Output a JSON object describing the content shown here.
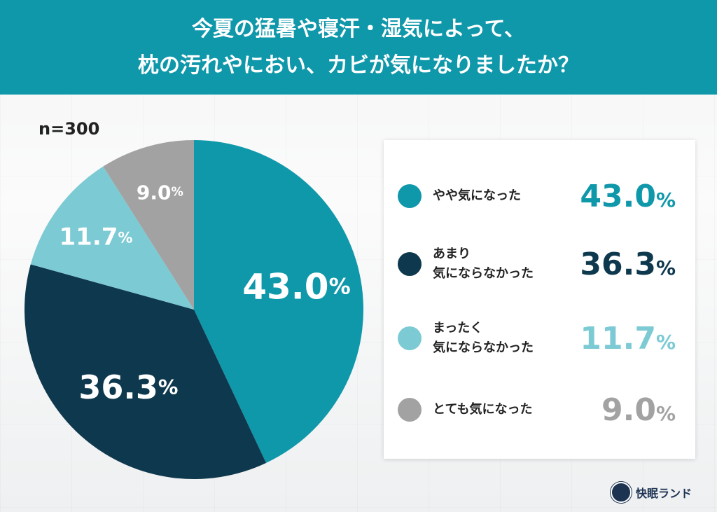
{
  "header": {
    "title_line1": "今夏の猛暑や寝汗・湿気によって、",
    "title_line2": "枕の汚れやにおい、カビが気になりましたか？"
  },
  "sample_size": "n=300",
  "chart_data": {
    "type": "pie",
    "title": "今夏の猛暑や寝汗・湿気によって、枕の汚れやにおい、カビが気になりましたか？",
    "unit": "%",
    "start": "top, clockwise",
    "legend_position": "right",
    "slices": [
      {
        "label": "やや気になった",
        "value": 43.0,
        "display": "43.0",
        "color": "#0f97aa"
      },
      {
        "label": "あまり気にならなかった",
        "label_line1": "あまり",
        "label_line2": "気にならなかった",
        "value": 36.3,
        "display": "36.3",
        "color": "#0e384d"
      },
      {
        "label": "まったく気にならなかった",
        "label_line1": "まったく",
        "label_line2": "気にならなかった",
        "value": 11.7,
        "display": "11.7",
        "color": "#7ccad3"
      },
      {
        "label": "とても気になった",
        "value": 9.0,
        "display": "9.0",
        "color": "#a2a2a2"
      }
    ]
  },
  "brand": {
    "name": "快眠ランド"
  }
}
